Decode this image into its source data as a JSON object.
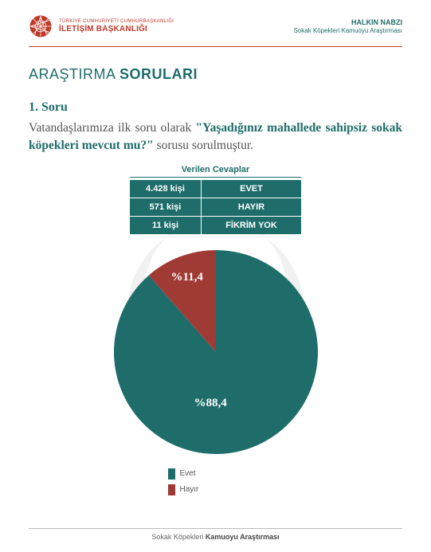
{
  "header": {
    "logo_small": "TÜRKİYE CUMHURİYETİ CUMHURBAŞKANLIĞI",
    "logo_big": "İLETİŞİM BAŞKANLIĞI",
    "right_line1": "HALKIN NABZI",
    "right_line2": "Sokak Köpekleri Kamuoyu Araştırması",
    "logo_color": "#c03a2b"
  },
  "section": {
    "title_light": "ARAŞTIRMA ",
    "title_bold": "SORULARI"
  },
  "question": {
    "number": "1. Soru",
    "pre": "Vatandaşlarımıza ilk soru olarak ",
    "quote": "\"Yaşadığınız mahallede sahipsiz sokak köpekleri mevcut mu?\"",
    "post": " sorusu sorulmuştur."
  },
  "answers": {
    "title": "Verilen Cevaplar",
    "rows": [
      {
        "count": "4.428 kişi",
        "label": "EVET"
      },
      {
        "count": "571 kişi",
        "label": "HAYIR"
      },
      {
        "count": "11 kişi",
        "label": "FİKRİM YOK"
      }
    ],
    "bg_color": "#1e6d6b"
  },
  "pie": {
    "type": "pie",
    "slices": [
      {
        "label": "Evet",
        "value": 88.4,
        "color": "#1e6d6b",
        "text": "%88,4"
      },
      {
        "label": "Hayır",
        "value": 11.4,
        "color": "#a03a34",
        "text": "%11,4"
      }
    ],
    "radius": 128
  },
  "legend": {
    "items": [
      {
        "label": "Evet",
        "color": "#1e6d6b"
      },
      {
        "label": "Hayır",
        "color": "#a03a34"
      }
    ]
  },
  "footer": {
    "light": "Sokak Köpekleri ",
    "bold": "Kamuoyu Araştırması"
  }
}
